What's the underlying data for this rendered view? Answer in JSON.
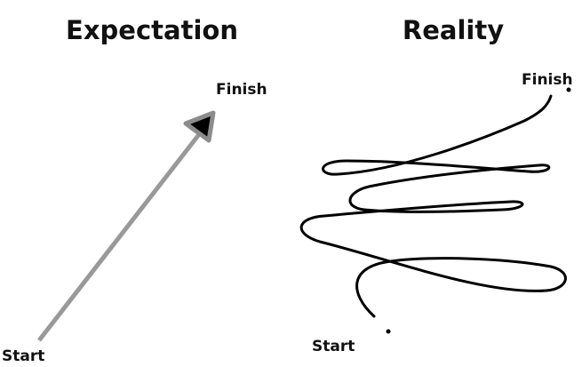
{
  "left_panel": {
    "title": "Expectation",
    "start_label": "Start",
    "finish_label": "Finish"
  },
  "right_panel": {
    "title": "Reality",
    "start_label": "Start",
    "finish_label": "Finish"
  },
  "colors": {
    "text": "#111111",
    "arrow_shaft": "#999999",
    "arrow_head_fill": "#000000",
    "arrow_head_outline": "#8c8c8c",
    "scribble": "#000000"
  }
}
